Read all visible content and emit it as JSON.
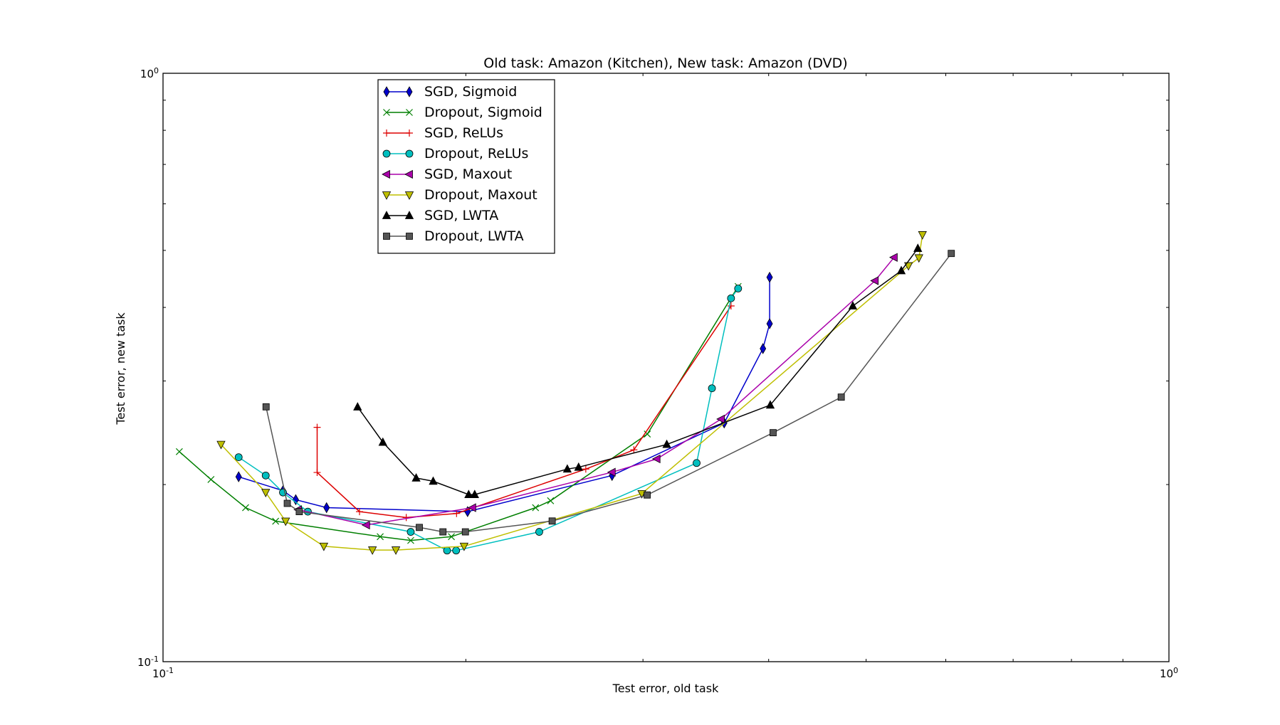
{
  "chart_data": {
    "type": "line",
    "title": "Old task: Amazon (Kitchen), New task: Amazon (DVD)",
    "xlabel": "Test error, old task",
    "ylabel": "Test error, new task",
    "xscale": "log",
    "yscale": "log",
    "xlim": [
      0.1,
      1.0
    ],
    "ylim": [
      0.1,
      1.0
    ],
    "x_ticklabels": [
      {
        "value": 0.1,
        "base": "10",
        "exp": "-1"
      },
      {
        "value": 1.0,
        "base": "10",
        "exp": "0"
      }
    ],
    "y_ticklabels": [
      {
        "value": 0.1,
        "base": "10",
        "exp": "-1"
      },
      {
        "value": 1.0,
        "base": "10",
        "exp": "0"
      }
    ],
    "grid": false,
    "legend_position": "upper-left",
    "series": [
      {
        "name": "SGD, Sigmoid",
        "color": "#0000cc",
        "marker": "diamond",
        "x": [
          0.1189,
          0.1316,
          0.1355,
          0.1454,
          0.2008,
          0.2795,
          0.3613,
          0.3948,
          0.4009,
          0.4009
        ],
        "y": [
          0.2062,
          0.1953,
          0.1885,
          0.1827,
          0.1799,
          0.2072,
          0.2545,
          0.3405,
          0.3753,
          0.4501
        ]
      },
      {
        "name": "Dropout, Sigmoid",
        "color": "#007f00",
        "marker": "x",
        "x": [
          0.1038,
          0.1116,
          0.1208,
          0.1294,
          0.1644,
          0.1763,
          0.1935,
          0.2346,
          0.2428,
          0.303,
          0.373
        ],
        "y": [
          0.2275,
          0.204,
          0.1827,
          0.1733,
          0.1631,
          0.1607,
          0.1631,
          0.1827,
          0.1877,
          0.2437,
          0.4342
        ]
      },
      {
        "name": "SGD, ReLUs",
        "color": "#dd0000",
        "marker": "plus",
        "x": [
          0.1423,
          0.1423,
          0.1568,
          0.1745,
          0.1958,
          0.2632,
          0.2938,
          0.367
        ],
        "y": [
          0.2502,
          0.2097,
          0.1799,
          0.1758,
          0.1786,
          0.2125,
          0.2291,
          0.4023
        ]
      },
      {
        "name": "Dropout, ReLUs",
        "color": "#00bfbf",
        "marker": "circle",
        "x": [
          0.1189,
          0.1265,
          0.1316,
          0.1393,
          0.1763,
          0.1916,
          0.1956,
          0.2366,
          0.3392,
          0.3513,
          0.367,
          0.373
        ],
        "y": [
          0.2226,
          0.2072,
          0.1939,
          0.1799,
          0.1662,
          0.1545,
          0.1545,
          0.1662,
          0.2176,
          0.2915,
          0.4146,
          0.4307
        ]
      },
      {
        "name": "SGD, Maxout",
        "color": "#aa00aa",
        "marker": "triangle-left",
        "x": [
          0.1363,
          0.1593,
          0.2031,
          0.2795,
          0.3097,
          0.3588,
          0.5103,
          0.533
        ],
        "y": [
          0.1813,
          0.1707,
          0.1827,
          0.2099,
          0.2211,
          0.2584,
          0.4441,
          0.4865
        ]
      },
      {
        "name": "Dropout, Maxout",
        "color": "#bfbf00",
        "marker": "triangle-down",
        "x": [
          0.1142,
          0.1265,
          0.1324,
          0.1445,
          0.1615,
          0.1704,
          0.1992,
          0.2992,
          0.5509,
          0.5642,
          0.5688
        ],
        "y": [
          0.234,
          0.1939,
          0.1733,
          0.1571,
          0.1548,
          0.1548,
          0.1571,
          0.193,
          0.4708,
          0.4856,
          0.5316
        ]
      },
      {
        "name": "SGD, LWTA",
        "color": "#000000",
        "marker": "triangle-up",
        "x": [
          0.1561,
          0.1654,
          0.1785,
          0.1856,
          0.2013,
          0.2041,
          0.2523,
          0.2589,
          0.3168,
          0.4015,
          0.485,
          0.5419,
          0.5628
        ],
        "y": [
          0.271,
          0.236,
          0.2052,
          0.2026,
          0.1923,
          0.1923,
          0.2125,
          0.214,
          0.234,
          0.273,
          0.4023,
          0.4618,
          0.504
        ]
      },
      {
        "name": "Dropout, LWTA",
        "color": "#555555",
        "marker": "square",
        "x": [
          0.1266,
          0.1329,
          0.1366,
          0.1798,
          0.1898,
          0.1998,
          0.2437,
          0.3029,
          0.4041,
          0.4723,
          0.6076
        ],
        "y": [
          0.2711,
          0.1858,
          0.1799,
          0.1691,
          0.1662,
          0.1662,
          0.1734,
          0.192,
          0.245,
          0.2816,
          0.4941
        ]
      }
    ]
  }
}
